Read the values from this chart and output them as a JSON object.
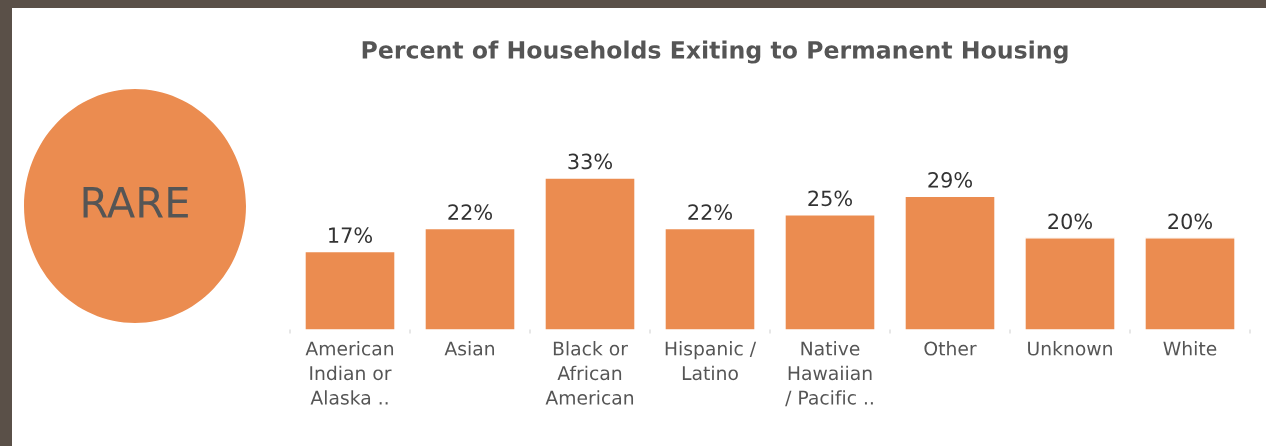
{
  "chart_data": {
    "type": "bar",
    "title": "Percent of Households Exiting to Permanent Housing",
    "categories": [
      "American\nIndian or\nAlaska ..",
      "Asian",
      "Black or\nAfrican\nAmerican",
      "Hispanic /\nLatino",
      "Native\nHawaiian\n/ Pacific ..",
      "Other",
      "Unknown",
      "White"
    ],
    "values": [
      17,
      22,
      33,
      22,
      25,
      29,
      20,
      20
    ],
    "value_labels": [
      "17%",
      "22%",
      "33%",
      "22%",
      "25%",
      "29%",
      "20%",
      "20%"
    ],
    "color": "#eb8c50",
    "data_labels": false,
    "annotations": [
      "RARE"
    ]
  }
}
